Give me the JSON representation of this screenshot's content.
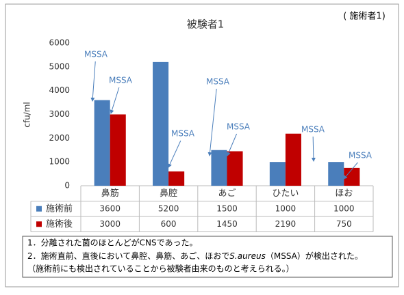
{
  "chart_data": {
    "type": "bar",
    "title": "被験者1",
    "subtitle": "( 施術者1)",
    "ylabel": "cfu/ml",
    "categories": [
      "鼻筋",
      "鼻腔",
      "あご",
      "ひたい",
      "ほお"
    ],
    "series": [
      {
        "name": "施術前",
        "color": "#4a7ebb",
        "values": [
          3600,
          5200,
          1500,
          1000,
          1000
        ]
      },
      {
        "name": "施術後",
        "color": "#c00000",
        "values": [
          3000,
          600,
          1450,
          2190,
          750
        ]
      }
    ],
    "ylim": [
      0,
      6000
    ],
    "yticks": [
      0,
      1000,
      2000,
      3000,
      4000,
      5000,
      6000
    ],
    "grid": false,
    "annotations": [
      "MSSA",
      "MSSA",
      "MSSA",
      "MSSA",
      "MSSA",
      "MSSA",
      "MSSA"
    ]
  },
  "notes": [
    "1．分離された菌のほとんどがCNSであった。",
    [
      "2．施術直前、直後において鼻腔、鼻筋、あご、ほおで",
      "S.aureus",
      "（MSSA）が検出された。"
    ],
    "（施術前にも検出されていることから被験者由来のものと考えられる。）"
  ]
}
